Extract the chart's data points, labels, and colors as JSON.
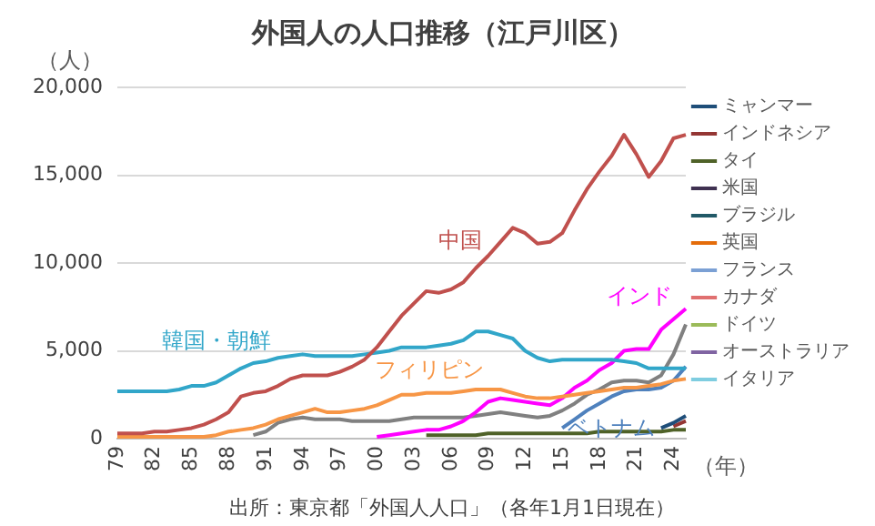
{
  "chart_data": {
    "type": "line",
    "title": "外国人の人口推移（江戸川区）",
    "ylabel": "（人）",
    "xlabel": "（年）",
    "annotations": [
      "出所：東京都「外国人人口」（各年1月1日現在）"
    ],
    "categories": [
      "79",
      null,
      null,
      "82",
      null,
      null,
      "85",
      null,
      null,
      "88",
      null,
      null,
      "91",
      null,
      null,
      "94",
      null,
      null,
      "97",
      null,
      null,
      "00",
      null,
      null,
      "03",
      null,
      null,
      "06",
      null,
      null,
      "09",
      null,
      null,
      "12",
      null,
      null,
      "15",
      null,
      null,
      "18",
      null,
      null,
      "21",
      null,
      null,
      "24",
      null
    ],
    "ylim": [
      0,
      20000
    ],
    "yticks": [
      {
        "value": 0,
        "label": "0"
      },
      {
        "value": 5000,
        "label": "5,000"
      },
      {
        "value": 10000,
        "label": "10,000"
      },
      {
        "value": 15000,
        "label": "15,000"
      },
      {
        "value": 20000,
        "label": "20,000"
      }
    ],
    "grid": "y",
    "legend": "right",
    "marker": "none",
    "line_style": "solid",
    "series": [
      {
        "name": "中国",
        "color": "#c0504d",
        "values": [
          300,
          300,
          300,
          400,
          400,
          500,
          600,
          800,
          1100,
          1500,
          2400,
          2600,
          2700,
          3000,
          3400,
          3600,
          3600,
          3600,
          3800,
          4100,
          4500,
          5200,
          6100,
          7000,
          7700,
          8400,
          8300,
          8500,
          8900,
          9700,
          10400,
          11200,
          12000,
          11700,
          11100,
          11200,
          11700,
          13000,
          14200,
          15200,
          16100,
          17300,
          16200,
          14900,
          15800,
          17100,
          17300
        ]
      },
      {
        "name": "韓国・朝鮮",
        "color": "#31a6c9",
        "values": [
          2700,
          2700,
          2700,
          2700,
          2700,
          2800,
          3000,
          3000,
          3200,
          3600,
          4000,
          4300,
          4400,
          4600,
          4700,
          4800,
          4700,
          4700,
          4700,
          4700,
          4800,
          4900,
          5000,
          5200,
          5200,
          5200,
          5300,
          5400,
          5600,
          6100,
          6100,
          5900,
          5700,
          5000,
          4600,
          4400,
          4500,
          4500,
          4500,
          4500,
          4500,
          4400,
          4300,
          4000,
          4000,
          4000,
          4000
        ]
      },
      {
        "name": "フィリピン",
        "color": "#f79646",
        "values": [
          100,
          100,
          100,
          100,
          100,
          100,
          100,
          100,
          200,
          400,
          500,
          600,
          800,
          1100,
          1300,
          1500,
          1700,
          1500,
          1500,
          1600,
          1700,
          1900,
          2200,
          2500,
          2500,
          2600,
          2600,
          2600,
          2700,
          2800,
          2800,
          2800,
          2600,
          2400,
          2300,
          2300,
          2400,
          2500,
          2600,
          2700,
          2800,
          2900,
          2900,
          3000,
          3100,
          3300,
          3400
        ]
      },
      {
        "name": "インド",
        "color": "#ff00ff",
        "values": [
          null,
          null,
          null,
          null,
          null,
          null,
          null,
          null,
          null,
          null,
          null,
          null,
          null,
          null,
          null,
          null,
          null,
          null,
          null,
          null,
          null,
          100,
          200,
          300,
          400,
          500,
          500,
          700,
          1000,
          1500,
          2100,
          2300,
          2200,
          2100,
          2000,
          1900,
          2300,
          2900,
          3300,
          3900,
          4300,
          5000,
          5100,
          5100,
          6200,
          6800,
          7400
        ]
      },
      {
        "name": "ベトナム",
        "color": "#4f81bd",
        "values": [
          null,
          null,
          null,
          null,
          null,
          null,
          null,
          null,
          null,
          null,
          null,
          null,
          null,
          null,
          null,
          null,
          null,
          null,
          null,
          null,
          null,
          null,
          null,
          null,
          null,
          null,
          null,
          null,
          null,
          null,
          null,
          null,
          null,
          null,
          null,
          null,
          600,
          1100,
          1600,
          2000,
          2400,
          2700,
          2800,
          2800,
          2900,
          3300,
          4100
        ]
      },
      {
        "color": "#808080",
        "values": [
          null,
          null,
          null,
          null,
          null,
          null,
          null,
          null,
          null,
          null,
          null,
          200,
          400,
          900,
          1100,
          1200,
          1100,
          1100,
          1100,
          1000,
          1000,
          1000,
          1000,
          1100,
          1200,
          1200,
          1200,
          1200,
          1200,
          1300,
          1400,
          1500,
          1400,
          1300,
          1200,
          1300,
          1600,
          2000,
          2500,
          2800,
          3200,
          3300,
          3300,
          3200,
          3600,
          4800,
          6500
        ]
      },
      {
        "name": "ミャンマー",
        "color": "#1f4e79",
        "values": [
          null,
          null,
          null,
          null,
          null,
          null,
          null,
          null,
          null,
          null,
          null,
          null,
          null,
          null,
          null,
          null,
          null,
          null,
          null,
          null,
          null,
          null,
          null,
          null,
          null,
          null,
          null,
          null,
          null,
          null,
          null,
          null,
          null,
          null,
          null,
          null,
          null,
          null,
          null,
          null,
          null,
          null,
          null,
          null,
          600,
          900,
          1300
        ]
      },
      {
        "name": "インドネシア",
        "color": "#943634",
        "values": [
          null,
          null,
          null,
          null,
          null,
          null,
          null,
          null,
          null,
          null,
          null,
          null,
          null,
          null,
          null,
          null,
          null,
          null,
          null,
          null,
          null,
          null,
          null,
          null,
          null,
          null,
          null,
          null,
          null,
          null,
          null,
          null,
          null,
          null,
          null,
          null,
          null,
          null,
          null,
          null,
          null,
          null,
          null,
          null,
          null,
          700,
          1000
        ]
      },
      {
        "name": "タイ",
        "color": "#4f6228",
        "values": [
          null,
          null,
          null,
          null,
          null,
          null,
          null,
          null,
          null,
          null,
          null,
          null,
          null,
          null,
          null,
          null,
          null,
          null,
          null,
          null,
          null,
          null,
          null,
          null,
          null,
          200,
          200,
          200,
          200,
          200,
          300,
          300,
          300,
          300,
          300,
          300,
          300,
          300,
          300,
          400,
          400,
          400,
          400,
          400,
          400,
          500,
          500
        ]
      },
      {
        "name": "米国",
        "color": "#3f3151",
        "values": [
          null,
          null,
          null,
          null,
          null,
          null,
          null,
          null,
          null,
          null,
          null,
          null,
          null,
          null,
          null,
          null,
          null,
          null,
          null,
          null,
          null,
          null,
          null,
          null,
          null,
          null,
          null,
          null,
          null,
          null,
          null,
          null,
          null,
          null,
          null,
          null,
          null,
          null,
          null,
          null,
          null,
          null,
          null,
          null,
          null,
          null,
          null
        ]
      },
      {
        "name": "ブラジル",
        "color": "#215967",
        "values": [
          null,
          null,
          null,
          null,
          null,
          null,
          null,
          null,
          null,
          null,
          null,
          null,
          null,
          null,
          null,
          null,
          null,
          null,
          null,
          null,
          null,
          null,
          null,
          null,
          null,
          null,
          null,
          null,
          null,
          null,
          null,
          null,
          null,
          null,
          null,
          null,
          null,
          null,
          null,
          null,
          null,
          null,
          null,
          null,
          null,
          null,
          null
        ]
      },
      {
        "name": "英国",
        "color": "#e46c0a",
        "values": [
          null,
          null,
          null,
          null,
          null,
          null,
          null,
          null,
          null,
          null,
          null,
          null,
          null,
          null,
          null,
          null,
          null,
          null,
          null,
          null,
          null,
          null,
          null,
          null,
          null,
          null,
          null,
          null,
          null,
          null,
          null,
          null,
          null,
          null,
          null,
          null,
          null,
          null,
          null,
          null,
          null,
          null,
          null,
          null,
          null,
          null,
          null
        ]
      },
      {
        "name": "フランス",
        "color": "#7ba0d4",
        "values": [
          null,
          null,
          null,
          null,
          null,
          null,
          null,
          null,
          null,
          null,
          null,
          null,
          null,
          null,
          null,
          null,
          null,
          null,
          null,
          null,
          null,
          null,
          null,
          null,
          null,
          null,
          null,
          null,
          null,
          null,
          null,
          null,
          null,
          null,
          null,
          null,
          null,
          null,
          null,
          null,
          null,
          null,
          null,
          null,
          null,
          null,
          null
        ]
      },
      {
        "name": "カナダ",
        "color": "#e07070",
        "values": [
          null,
          null,
          null,
          null,
          null,
          null,
          null,
          null,
          null,
          null,
          null,
          null,
          null,
          null,
          null,
          null,
          null,
          null,
          null,
          null,
          null,
          null,
          null,
          null,
          null,
          null,
          null,
          null,
          null,
          null,
          null,
          null,
          null,
          null,
          null,
          null,
          null,
          null,
          null,
          null,
          null,
          null,
          null,
          null,
          null,
          null,
          null
        ]
      },
      {
        "name": "ドイツ",
        "color": "#9bbb59",
        "values": [
          null,
          null,
          null,
          null,
          null,
          null,
          null,
          null,
          null,
          null,
          null,
          null,
          null,
          null,
          null,
          null,
          null,
          null,
          null,
          null,
          null,
          null,
          null,
          null,
          null,
          null,
          null,
          null,
          null,
          null,
          null,
          null,
          null,
          null,
          null,
          null,
          null,
          null,
          null,
          null,
          null,
          null,
          null,
          null,
          null,
          null,
          null
        ]
      },
      {
        "name": "オーストラリア",
        "color": "#8064a2",
        "values": [
          null,
          null,
          null,
          null,
          null,
          null,
          null,
          null,
          null,
          null,
          null,
          null,
          null,
          null,
          null,
          null,
          null,
          null,
          null,
          null,
          null,
          null,
          null,
          null,
          null,
          null,
          null,
          null,
          null,
          null,
          null,
          null,
          null,
          null,
          null,
          null,
          null,
          null,
          null,
          null,
          null,
          null,
          null,
          null,
          null,
          null,
          null
        ]
      },
      {
        "name": "イタリア",
        "color": "#7fcde0",
        "values": [
          null,
          null,
          null,
          null,
          null,
          null,
          null,
          null,
          null,
          null,
          null,
          null,
          null,
          null,
          null,
          null,
          null,
          null,
          null,
          null,
          null,
          null,
          null,
          null,
          null,
          null,
          null,
          null,
          null,
          null,
          null,
          null,
          null,
          null,
          null,
          null,
          null,
          null,
          null,
          null,
          null,
          null,
          null,
          null,
          null,
          null,
          null
        ]
      }
    ]
  }
}
